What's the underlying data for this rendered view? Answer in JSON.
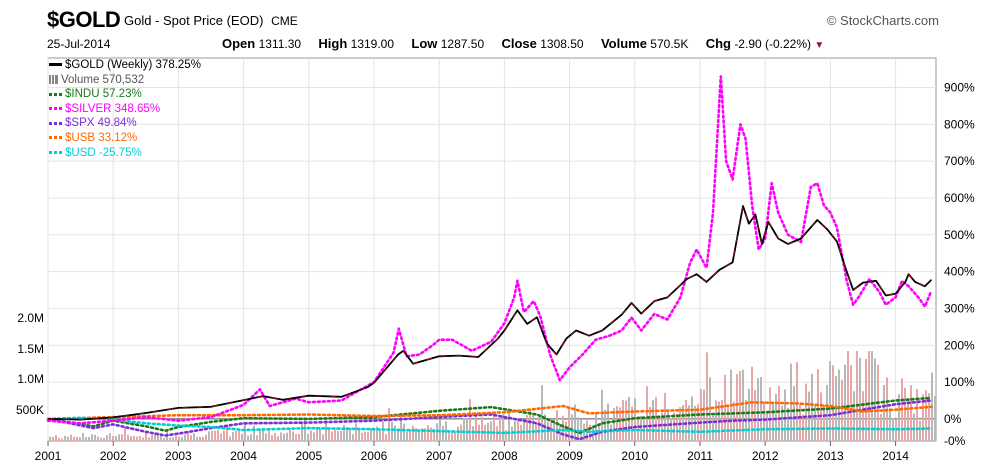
{
  "header": {
    "symbol": "$GOLD",
    "description": "Gold - Spot Price (EOD)",
    "exchange": "CME",
    "brand": "© StockCharts.com",
    "date": "25-Jul-2014",
    "open_label": "Open",
    "open_value": "1311.30",
    "high_label": "High",
    "high_value": "1319.00",
    "low_label": "Low",
    "low_value": "1287.50",
    "close_label": "Close",
    "close_value": "1308.50",
    "volume_label": "Volume",
    "volume_value": "570.5K",
    "chg_label": "Chg",
    "chg_value": "-2.90 (-0.22%)",
    "chg_arrow": "▼"
  },
  "legend": [
    {
      "label": "$GOLD (Weekly) 378.25%",
      "color": "#000000",
      "style": "solid"
    },
    {
      "label": "Volume 570,532",
      "color": "#808080",
      "style": "volume"
    },
    {
      "label": "$INDU 57.23%",
      "color": "#1a7a1a",
      "style": "dotted"
    },
    {
      "label": "$SILVER 348.65%",
      "color": "#ff00ff",
      "style": "dotted"
    },
    {
      "label": "$SPX 49.84%",
      "color": "#7b2fd4",
      "style": "dotted"
    },
    {
      "label": "$USB 33.12%",
      "color": "#ff6a00",
      "style": "dotted"
    },
    {
      "label": "$USD -25.75%",
      "color": "#00d0d0",
      "style": "dotted"
    }
  ],
  "chart_data": {
    "type": "line",
    "title": "$GOLD Gold - Spot Price (EOD) CME",
    "x_ticks": [
      "2001",
      "2002",
      "2003",
      "2004",
      "2005",
      "2006",
      "2007",
      "2008",
      "2009",
      "2010",
      "2011",
      "2012",
      "2013",
      "2014"
    ],
    "xlim": [
      2001.0,
      2014.62
    ],
    "right_axis": {
      "ticks": [
        "-0%",
        "0%",
        "100%",
        "200%",
        "300%",
        "400%",
        "500%",
        "600%",
        "700%",
        "800%",
        "900%"
      ],
      "unit": "percent change",
      "ylim": [
        -60,
        980
      ]
    },
    "left_axis": {
      "ticks": [
        "500K",
        "1.0M",
        "1.5M",
        "2.0M"
      ],
      "label": "Volume"
    },
    "grid": true,
    "legend_position": "top-left",
    "series": [
      {
        "name": "$GOLD (Weekly)",
        "color": "#000000",
        "dash": false,
        "final": "378.25%",
        "points": [
          [
            2001.0,
            0
          ],
          [
            2001.5,
            -2
          ],
          [
            2002.0,
            4
          ],
          [
            2002.5,
            16
          ],
          [
            2003.0,
            30
          ],
          [
            2003.5,
            33
          ],
          [
            2004.0,
            51
          ],
          [
            2004.3,
            62
          ],
          [
            2004.6,
            52
          ],
          [
            2005.0,
            63
          ],
          [
            2005.5,
            60
          ],
          [
            2005.9,
            86
          ],
          [
            2006.0,
            98
          ],
          [
            2006.37,
            175
          ],
          [
            2006.45,
            185
          ],
          [
            2006.6,
            150
          ],
          [
            2006.9,
            165
          ],
          [
            2007.0,
            170
          ],
          [
            2007.3,
            172
          ],
          [
            2007.6,
            168
          ],
          [
            2007.9,
            218
          ],
          [
            2008.0,
            240
          ],
          [
            2008.2,
            295
          ],
          [
            2008.35,
            258
          ],
          [
            2008.5,
            276
          ],
          [
            2008.65,
            205
          ],
          [
            2008.8,
            175
          ],
          [
            2008.95,
            218
          ],
          [
            2009.1,
            240
          ],
          [
            2009.3,
            226
          ],
          [
            2009.5,
            240
          ],
          [
            2009.8,
            283
          ],
          [
            2009.95,
            315
          ],
          [
            2010.1,
            286
          ],
          [
            2010.3,
            320
          ],
          [
            2010.5,
            330
          ],
          [
            2010.8,
            380
          ],
          [
            2010.95,
            393
          ],
          [
            2011.1,
            372
          ],
          [
            2011.3,
            405
          ],
          [
            2011.5,
            425
          ],
          [
            2011.66,
            578
          ],
          [
            2011.75,
            530
          ],
          [
            2011.85,
            555
          ],
          [
            2011.95,
            475
          ],
          [
            2012.05,
            535
          ],
          [
            2012.2,
            490
          ],
          [
            2012.35,
            475
          ],
          [
            2012.55,
            490
          ],
          [
            2012.8,
            540
          ],
          [
            2012.95,
            515
          ],
          [
            2013.1,
            482
          ],
          [
            2013.25,
            400
          ],
          [
            2013.35,
            350
          ],
          [
            2013.5,
            370
          ],
          [
            2013.7,
            375
          ],
          [
            2013.85,
            335
          ],
          [
            2014.0,
            340
          ],
          [
            2014.15,
            372
          ],
          [
            2014.2,
            393
          ],
          [
            2014.3,
            372
          ],
          [
            2014.45,
            360
          ],
          [
            2014.55,
            378
          ]
        ]
      },
      {
        "name": "$SILVER",
        "color": "#ff00ff",
        "dash": true,
        "final": "348.65%",
        "points": [
          [
            2001.0,
            -5
          ],
          [
            2001.5,
            -12
          ],
          [
            2002.0,
            -5
          ],
          [
            2002.5,
            5
          ],
          [
            2003.0,
            -5
          ],
          [
            2003.5,
            5
          ],
          [
            2004.0,
            38
          ],
          [
            2004.25,
            80
          ],
          [
            2004.4,
            35
          ],
          [
            2004.8,
            55
          ],
          [
            2005.0,
            45
          ],
          [
            2005.5,
            50
          ],
          [
            2005.9,
            90
          ],
          [
            2006.0,
            100
          ],
          [
            2006.3,
            180
          ],
          [
            2006.38,
            245
          ],
          [
            2006.5,
            170
          ],
          [
            2006.7,
            175
          ],
          [
            2006.9,
            200
          ],
          [
            2007.0,
            215
          ],
          [
            2007.2,
            215
          ],
          [
            2007.5,
            185
          ],
          [
            2007.8,
            210
          ],
          [
            2008.0,
            260
          ],
          [
            2008.15,
            330
          ],
          [
            2008.2,
            375
          ],
          [
            2008.3,
            290
          ],
          [
            2008.45,
            320
          ],
          [
            2008.55,
            280
          ],
          [
            2008.7,
            175
          ],
          [
            2008.85,
            105
          ],
          [
            2009.0,
            140
          ],
          [
            2009.2,
            175
          ],
          [
            2009.4,
            215
          ],
          [
            2009.6,
            225
          ],
          [
            2009.8,
            240
          ],
          [
            2009.95,
            275
          ],
          [
            2010.1,
            240
          ],
          [
            2010.3,
            285
          ],
          [
            2010.5,
            270
          ],
          [
            2010.7,
            330
          ],
          [
            2010.85,
            425
          ],
          [
            2010.95,
            460
          ],
          [
            2011.1,
            410
          ],
          [
            2011.2,
            560
          ],
          [
            2011.32,
            930
          ],
          [
            2011.4,
            700
          ],
          [
            2011.5,
            650
          ],
          [
            2011.62,
            800
          ],
          [
            2011.7,
            760
          ],
          [
            2011.8,
            580
          ],
          [
            2011.9,
            460
          ],
          [
            2012.0,
            490
          ],
          [
            2012.1,
            640
          ],
          [
            2012.2,
            560
          ],
          [
            2012.35,
            500
          ],
          [
            2012.55,
            480
          ],
          [
            2012.7,
            630
          ],
          [
            2012.8,
            640
          ],
          [
            2012.9,
            580
          ],
          [
            2013.0,
            560
          ],
          [
            2013.1,
            520
          ],
          [
            2013.25,
            375
          ],
          [
            2013.35,
            310
          ],
          [
            2013.45,
            335
          ],
          [
            2013.6,
            380
          ],
          [
            2013.75,
            345
          ],
          [
            2013.85,
            310
          ],
          [
            2014.0,
            330
          ],
          [
            2014.1,
            375
          ],
          [
            2014.2,
            360
          ],
          [
            2014.35,
            330
          ],
          [
            2014.45,
            305
          ],
          [
            2014.55,
            348
          ]
        ]
      },
      {
        "name": "$INDU",
        "color": "#1a7a1a",
        "dash": true,
        "final": "57.23%",
        "points": [
          [
            2001.0,
            0
          ],
          [
            2001.7,
            -20
          ],
          [
            2002.0,
            -5
          ],
          [
            2002.5,
            -20
          ],
          [
            2002.8,
            -32
          ],
          [
            2003.0,
            -22
          ],
          [
            2003.5,
            -8
          ],
          [
            2004.0,
            2
          ],
          [
            2005.0,
            0
          ],
          [
            2006.0,
            5
          ],
          [
            2007.0,
            22
          ],
          [
            2007.8,
            32
          ],
          [
            2008.5,
            12
          ],
          [
            2008.9,
            -20
          ],
          [
            2009.15,
            -38
          ],
          [
            2009.5,
            -12
          ],
          [
            2010.0,
            2
          ],
          [
            2011.0,
            12
          ],
          [
            2011.5,
            15
          ],
          [
            2012.0,
            18
          ],
          [
            2013.0,
            28
          ],
          [
            2014.0,
            50
          ],
          [
            2014.55,
            57
          ]
        ]
      },
      {
        "name": "$SPX",
        "color": "#7b2fd4",
        "dash": true,
        "final": "49.84%",
        "points": [
          [
            2001.0,
            0
          ],
          [
            2001.7,
            -25
          ],
          [
            2002.0,
            -15
          ],
          [
            2002.5,
            -35
          ],
          [
            2002.8,
            -45
          ],
          [
            2003.0,
            -40
          ],
          [
            2003.5,
            -25
          ],
          [
            2004.0,
            -12
          ],
          [
            2005.0,
            -10
          ],
          [
            2006.0,
            -5
          ],
          [
            2007.0,
            5
          ],
          [
            2007.8,
            12
          ],
          [
            2008.5,
            -12
          ],
          [
            2008.9,
            -42
          ],
          [
            2009.15,
            -55
          ],
          [
            2009.5,
            -35
          ],
          [
            2010.0,
            -22
          ],
          [
            2011.0,
            -10
          ],
          [
            2011.5,
            -5
          ],
          [
            2012.0,
            -2
          ],
          [
            2013.0,
            10
          ],
          [
            2014.0,
            40
          ],
          [
            2014.55,
            50
          ]
        ]
      },
      {
        "name": "$USB",
        "color": "#ff6a00",
        "dash": true,
        "final": "33.12%",
        "points": [
          [
            2001.0,
            0
          ],
          [
            2002.0,
            5
          ],
          [
            2003.0,
            10
          ],
          [
            2004.0,
            10
          ],
          [
            2005.0,
            12
          ],
          [
            2006.0,
            8
          ],
          [
            2007.0,
            10
          ],
          [
            2008.0,
            18
          ],
          [
            2008.9,
            35
          ],
          [
            2009.3,
            15
          ],
          [
            2010.0,
            20
          ],
          [
            2011.0,
            25
          ],
          [
            2011.8,
            45
          ],
          [
            2012.5,
            42
          ],
          [
            2013.0,
            35
          ],
          [
            2013.5,
            20
          ],
          [
            2014.0,
            25
          ],
          [
            2014.55,
            33
          ]
        ]
      },
      {
        "name": "$USD",
        "color": "#00d0d0",
        "dash": true,
        "final": "-25.75%",
        "points": [
          [
            2001.0,
            0
          ],
          [
            2001.5,
            3
          ],
          [
            2002.0,
            -2
          ],
          [
            2002.5,
            -12
          ],
          [
            2003.0,
            -18
          ],
          [
            2003.5,
            -22
          ],
          [
            2004.0,
            -30
          ],
          [
            2005.0,
            -25
          ],
          [
            2006.0,
            -28
          ],
          [
            2007.0,
            -33
          ],
          [
            2008.0,
            -38
          ],
          [
            2008.9,
            -30
          ],
          [
            2009.3,
            -35
          ],
          [
            2010.0,
            -30
          ],
          [
            2011.0,
            -35
          ],
          [
            2012.0,
            -28
          ],
          [
            2013.0,
            -26
          ],
          [
            2014.0,
            -28
          ],
          [
            2014.55,
            -26
          ]
        ]
      }
    ],
    "volume_profile": [
      [
        2001.0,
        0.05
      ],
      [
        2003.0,
        0.08
      ],
      [
        2005.0,
        0.12
      ],
      [
        2007.0,
        0.2
      ],
      [
        2008.0,
        0.25
      ],
      [
        2009.0,
        0.3
      ],
      [
        2010.0,
        0.38
      ],
      [
        2011.0,
        0.5
      ],
      [
        2011.5,
        0.7
      ],
      [
        2012.0,
        0.6
      ],
      [
        2012.5,
        0.55
      ],
      [
        2013.0,
        0.7
      ],
      [
        2013.4,
        0.85
      ],
      [
        2014.0,
        0.5
      ],
      [
        2014.55,
        0.45
      ]
    ]
  }
}
